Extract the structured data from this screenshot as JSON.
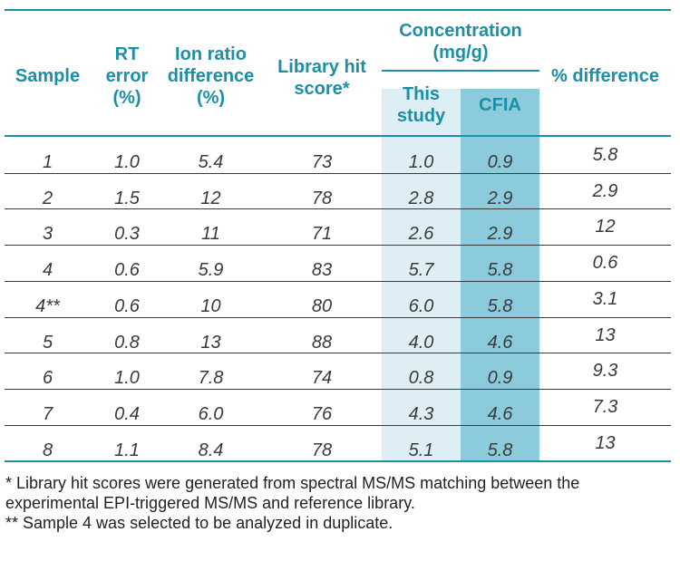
{
  "colors": {
    "header_text": "#1c8fa6",
    "rule": "#1c8fa6",
    "this_study_fill": "#ddeff5",
    "cfia_fill": "#8ccbdb"
  },
  "headers": {
    "sample": "Sample",
    "rt_error": [
      "RT",
      "error",
      "(%)"
    ],
    "ion_ratio": [
      "Ion ratio",
      "difference",
      "(%)"
    ],
    "library": [
      "Library hit",
      "score*"
    ],
    "concentration": [
      "Concentration",
      "(mg/g)"
    ],
    "this_study": [
      "This",
      "study"
    ],
    "cfia": "CFIA",
    "pct_diff": "% difference"
  },
  "rows": [
    {
      "sample": "1",
      "rt": "1.0",
      "ion": "5.4",
      "lib": "73",
      "this": "1.0",
      "cfia": "0.9",
      "diff": "5.8"
    },
    {
      "sample": "2",
      "rt": "1.5",
      "ion": "12",
      "lib": "78",
      "this": "2.8",
      "cfia": "2.9",
      "diff": "2.9"
    },
    {
      "sample": "3",
      "rt": "0.3",
      "ion": "11",
      "lib": "71",
      "this": "2.6",
      "cfia": "2.9",
      "diff": "12"
    },
    {
      "sample": "4",
      "rt": "0.6",
      "ion": "5.9",
      "lib": "83",
      "this": "5.7",
      "cfia": "5.8",
      "diff": "0.6"
    },
    {
      "sample": "4**",
      "rt": "0.6",
      "ion": "10",
      "lib": "80",
      "this": "6.0",
      "cfia": "5.8",
      "diff": "3.1"
    },
    {
      "sample": "5",
      "rt": "0.8",
      "ion": "13",
      "lib": "88",
      "this": "4.0",
      "cfia": "4.6",
      "diff": "13"
    },
    {
      "sample": "6",
      "rt": "1.0",
      "ion": "7.8",
      "lib": "74",
      "this": "0.8",
      "cfia": "0.9",
      "diff": "9.3"
    },
    {
      "sample": "7",
      "rt": "0.4",
      "ion": "6.0",
      "lib": "76",
      "this": "4.3",
      "cfia": "4.6",
      "diff": "7.3"
    },
    {
      "sample": "8",
      "rt": "1.1",
      "ion": "8.4",
      "lib": "78",
      "this": "5.1",
      "cfia": "5.8",
      "diff": "13"
    }
  ],
  "footnotes": [
    "* Library hit scores were generated from spectral MS/MS matching between the",
    "experimental EPI-triggered MS/MS and reference library.",
    "** Sample 4 was selected to be analyzed in duplicate."
  ]
}
